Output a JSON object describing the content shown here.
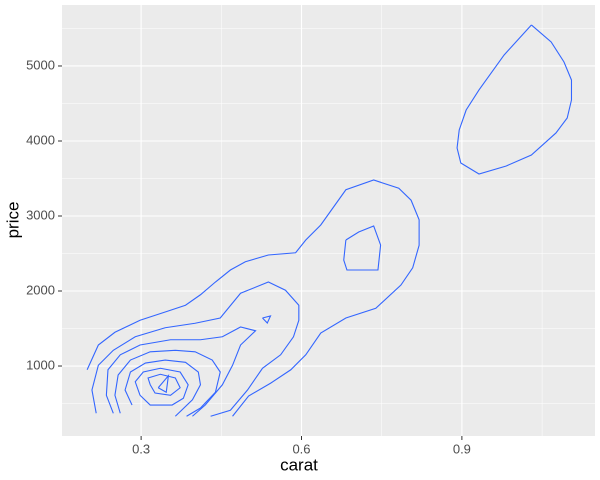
{
  "chart_data": {
    "type": "contour",
    "x_label": "carat",
    "y_label": "price",
    "xlim": [
      0.152,
      1.149
    ],
    "ylim": [
      67,
      5813
    ],
    "xticks": [
      0.3,
      0.6,
      0.9
    ],
    "yticks": [
      1000,
      2000,
      3000,
      4000,
      5000
    ],
    "x_minor_grid": [
      0.45,
      0.75,
      1.05
    ],
    "y_minor_grid": [
      500,
      1500,
      2500,
      3500,
      4500,
      5500
    ],
    "grid": true,
    "panel_color": "#ebebeb",
    "line_color": "#3366ff",
    "series": [
      {
        "x": [
          1.03,
          1.067,
          1.091,
          1.105,
          1.105,
          1.097,
          1.076,
          1.03,
          0.983,
          0.932,
          0.898,
          0.891,
          0.895,
          0.908,
          0.932,
          0.979,
          1.03
        ],
        "y": [
          5547,
          5320,
          5053,
          4813,
          4547,
          4307,
          4107,
          3813,
          3667,
          3560,
          3707,
          3907,
          4147,
          4413,
          4680,
          5147,
          5547
        ]
      },
      {
        "x": [
          0.683,
          0.707,
          0.735,
          0.748,
          0.743,
          0.685,
          0.679,
          0.683
        ],
        "y": [
          2680,
          2787,
          2867,
          2613,
          2280,
          2280,
          2413,
          2680
        ]
      },
      {
        "x": [
          0.527,
          0.542,
          0.536,
          0.527
        ],
        "y": [
          1640,
          1667,
          1573,
          1640
        ]
      },
      {
        "x": [
          0.199,
          0.22,
          0.251,
          0.298,
          0.345,
          0.383,
          0.411,
          0.439,
          0.467,
          0.495,
          0.538,
          0.589,
          0.608,
          0.636,
          0.683,
          0.735,
          0.782,
          0.805,
          0.82,
          0.82,
          0.808,
          0.786,
          0.739,
          0.683,
          0.636,
          0.608,
          0.58,
          0.542,
          0.501,
          0.471
        ],
        "y": [
          950,
          1280,
          1450,
          1610,
          1720,
          1810,
          1950,
          2120,
          2280,
          2390,
          2480,
          2510,
          2680,
          2880,
          3350,
          3480,
          3370,
          3210,
          2950,
          2610,
          2310,
          2080,
          1770,
          1640,
          1440,
          1150,
          950,
          770,
          600,
          330
        ]
      },
      {
        "x": [
          0.216,
          0.208,
          0.22,
          0.248,
          0.289,
          0.345,
          0.401,
          0.448,
          0.486,
          0.538,
          0.57,
          0.595,
          0.595,
          0.585,
          0.561,
          0.527,
          0.499,
          0.467,
          0.43
        ],
        "y": [
          370,
          680,
          1010,
          1210,
          1390,
          1510,
          1570,
          1640,
          1970,
          2120,
          2010,
          1810,
          1610,
          1390,
          1150,
          970,
          680,
          410,
          330
        ]
      },
      {
        "x": [
          0.248,
          0.235,
          0.238,
          0.261,
          0.298,
          0.355,
          0.411,
          0.452,
          0.486,
          0.514,
          0.486,
          0.471,
          0.452,
          0.42,
          0.396
        ],
        "y": [
          370,
          610,
          950,
          1150,
          1280,
          1350,
          1350,
          1390,
          1520,
          1470,
          1280,
          1010,
          750,
          480,
          330
        ]
      },
      {
        "x": [
          0.261,
          0.251,
          0.257,
          0.28,
          0.317,
          0.364,
          0.401,
          0.433,
          0.448,
          0.439,
          0.411,
          0.385
        ],
        "y": [
          370,
          610,
          880,
          1080,
          1190,
          1210,
          1190,
          1080,
          920,
          650,
          440,
          330
        ]
      },
      {
        "x": [
          0.283,
          0.27,
          0.28,
          0.308,
          0.345,
          0.383,
          0.407,
          0.411,
          0.396,
          0.364
        ],
        "y": [
          480,
          680,
          920,
          1040,
          1080,
          1050,
          920,
          750,
          550,
          330
        ]
      },
      {
        "x": [
          0.298,
          0.289,
          0.304,
          0.336,
          0.373,
          0.388,
          0.379,
          0.358,
          0.317,
          0.298
        ],
        "y": [
          610,
          790,
          920,
          970,
          920,
          750,
          570,
          480,
          480,
          610
        ]
      },
      {
        "x": [
          0.317,
          0.313,
          0.336,
          0.364,
          0.373,
          0.355,
          0.326,
          0.317
        ],
        "y": [
          750,
          840,
          890,
          840,
          710,
          610,
          640,
          750
        ]
      },
      {
        "x": [
          0.332,
          0.351,
          0.347,
          0.332
        ],
        "y": [
          710,
          870,
          650,
          710
        ]
      }
    ]
  }
}
